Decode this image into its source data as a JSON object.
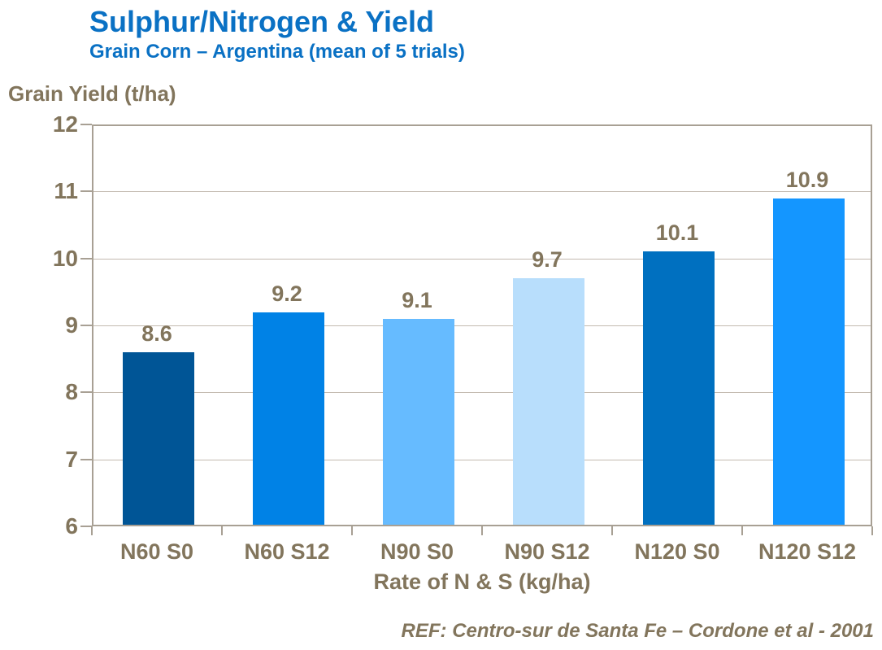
{
  "header": {
    "title": "Sulphur/Nitrogen & Yield",
    "subtitle": "Grain Corn – Argentina (mean of 5 trials)"
  },
  "footer": {
    "reference": "REF: Centro-sur de Santa Fe – Cordone et al - 2001"
  },
  "colors": {
    "title_blue": "#0A71C4",
    "text_taupe": "#82755C",
    "gridline": "#C3BAB0",
    "axis_border": "#A8A094",
    "background": "#FFFFFF"
  },
  "chart_data": {
    "type": "bar",
    "title": "Sulphur/Nitrogen & Yield",
    "subtitle": "Grain Corn – Argentina (mean of 5 trials)",
    "categories": [
      "N60 S0",
      "N60 S12",
      "N90 S0",
      "N90 S12",
      "N120 S0",
      "N120 S12"
    ],
    "values": [
      8.6,
      9.2,
      9.1,
      9.7,
      10.1,
      10.9
    ],
    "data_labels": [
      "8.6",
      "9.2",
      "9.1",
      "9.7",
      "10.1",
      "10.9"
    ],
    "bar_colors": [
      "#005596",
      "#0082E6",
      "#66BBFF",
      "#B8DEFC",
      "#0070C0",
      "#1496FF"
    ],
    "xlabel": "Rate of N & S (kg/ha)",
    "ylabel": "Grain Yield (t/ha)",
    "ylim": [
      6,
      12
    ],
    "yticks": [
      6,
      7,
      8,
      9,
      10,
      11,
      12
    ],
    "grid": true,
    "legend_position": "none"
  }
}
